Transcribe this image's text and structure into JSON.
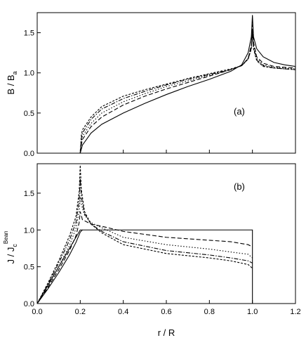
{
  "chart_data": [
    {
      "type": "line",
      "panel_label": "(a)",
      "ylabel_main": "B / B",
      "ylabel_sub": "a",
      "xlim": [
        0,
        1.2
      ],
      "ylim": [
        0,
        1.75
      ],
      "xticks": [
        "0.0",
        "0.2",
        "0.4",
        "0.6",
        "0.8",
        "1.0",
        "1.2"
      ],
      "yticks": [
        "0.0",
        "0.5",
        "1.0",
        "1.5"
      ],
      "yticks_values": [
        0,
        0.5,
        1.0,
        1.5
      ],
      "series": [
        {
          "style": "solid",
          "x": [
            0,
            0.2,
            0.21,
            0.25,
            0.3,
            0.4,
            0.5,
            0.6,
            0.7,
            0.8,
            0.9,
            0.95,
            0.98,
            0.995,
            1.0,
            1.005,
            1.02,
            1.05,
            1.1,
            1.15,
            1.2
          ],
          "y": [
            0,
            0,
            0.1,
            0.25,
            0.36,
            0.5,
            0.62,
            0.73,
            0.83,
            0.92,
            1.02,
            1.1,
            1.25,
            1.45,
            1.72,
            1.45,
            1.3,
            1.2,
            1.13,
            1.1,
            1.08
          ]
        },
        {
          "style": "dash",
          "x": [
            0,
            0.2,
            0.205,
            0.21,
            0.25,
            0.3,
            0.4,
            0.5,
            0.6,
            0.7,
            0.8,
            0.9,
            0.95,
            0.98,
            0.995,
            1.0,
            1.005,
            1.02,
            1.05,
            1.1,
            1.15,
            1.2
          ],
          "y": [
            0,
            0,
            0.1,
            0.17,
            0.33,
            0.45,
            0.6,
            0.71,
            0.8,
            0.88,
            0.96,
            1.04,
            1.09,
            1.18,
            1.35,
            1.6,
            1.38,
            1.2,
            1.12,
            1.08,
            1.07,
            1.06
          ]
        },
        {
          "style": "dot",
          "x": [
            0,
            0.2,
            0.205,
            0.21,
            0.25,
            0.3,
            0.4,
            0.5,
            0.6,
            0.7,
            0.8,
            0.9,
            0.95,
            0.98,
            0.995,
            1.0,
            1.005,
            1.02,
            1.05,
            1.1,
            1.15,
            1.2
          ],
          "y": [
            0,
            0,
            0.14,
            0.21,
            0.37,
            0.5,
            0.64,
            0.74,
            0.83,
            0.9,
            0.97,
            1.04,
            1.09,
            1.18,
            1.33,
            1.55,
            1.35,
            1.18,
            1.1,
            1.07,
            1.06,
            1.05
          ]
        },
        {
          "style": "dashdot",
          "x": [
            0,
            0.2,
            0.205,
            0.21,
            0.25,
            0.3,
            0.4,
            0.5,
            0.6,
            0.7,
            0.8,
            0.9,
            0.95,
            0.98,
            0.995,
            1.0,
            1.005,
            1.02,
            1.05,
            1.1,
            1.15,
            1.2
          ],
          "y": [
            0,
            0,
            0.18,
            0.25,
            0.42,
            0.55,
            0.68,
            0.77,
            0.85,
            0.92,
            0.98,
            1.04,
            1.09,
            1.17,
            1.31,
            1.52,
            1.32,
            1.16,
            1.09,
            1.06,
            1.05,
            1.04
          ]
        },
        {
          "style": "shortdash",
          "x": [
            0,
            0.2,
            0.205,
            0.21,
            0.25,
            0.3,
            0.4,
            0.5,
            0.6,
            0.7,
            0.8,
            0.9,
            0.95,
            0.98,
            0.995,
            1.0,
            1.005,
            1.02,
            1.05,
            1.1,
            1.15,
            1.2
          ],
          "y": [
            0,
            0,
            0.22,
            0.29,
            0.45,
            0.58,
            0.71,
            0.79,
            0.86,
            0.93,
            0.99,
            1.05,
            1.09,
            1.17,
            1.3,
            1.5,
            1.3,
            1.15,
            1.08,
            1.06,
            1.05,
            1.04
          ]
        }
      ]
    },
    {
      "type": "line",
      "panel_label": "(b)",
      "ylabel_main": "J / J",
      "ylabel_sub": "c",
      "ylabel_sup": "Bean",
      "xlabel": "r / R",
      "xlim": [
        0,
        1.2
      ],
      "ylim": [
        0,
        1.9
      ],
      "xticks": [
        "0.0",
        "0.2",
        "0.4",
        "0.6",
        "0.8",
        "1.0",
        "1.2"
      ],
      "xticks_values": [
        0,
        0.2,
        0.4,
        0.6,
        0.8,
        1.0,
        1.2
      ],
      "yticks": [
        "0.0",
        "0.5",
        "1.0",
        "1.5"
      ],
      "yticks_values": [
        0,
        0.5,
        1.0,
        1.5
      ],
      "series": [
        {
          "style": "solid-bean",
          "x": [
            0,
            0.2,
            0.2,
            1.0,
            1.0
          ],
          "y": [
            0,
            1.0,
            1.0,
            1.0,
            0
          ]
        },
        {
          "style": "solid",
          "x": [
            0,
            0.05,
            0.1,
            0.15,
            0.18,
            0.2,
            0.21
          ],
          "y": [
            0,
            0.2,
            0.42,
            0.66,
            0.83,
            0.97,
            1.0
          ]
        },
        {
          "style": "dash",
          "x": [
            0,
            0.05,
            0.1,
            0.15,
            0.18,
            0.195,
            0.2,
            0.21,
            0.25,
            0.3,
            0.4,
            0.6,
            0.8,
            0.9,
            0.98,
            1.0
          ],
          "y": [
            0,
            0.22,
            0.46,
            0.72,
            0.92,
            1.1,
            1.25,
            1.14,
            1.08,
            1.05,
            0.98,
            0.9,
            0.86,
            0.84,
            0.8,
            0.77
          ]
        },
        {
          "style": "dot",
          "x": [
            0,
            0.05,
            0.1,
            0.15,
            0.18,
            0.195,
            0.2,
            0.205,
            0.22,
            0.25,
            0.3,
            0.4,
            0.6,
            0.8,
            0.9,
            0.98,
            1.0
          ],
          "y": [
            0,
            0.24,
            0.5,
            0.79,
            1.02,
            1.25,
            1.45,
            1.35,
            1.2,
            1.1,
            1.03,
            0.9,
            0.8,
            0.74,
            0.7,
            0.67,
            0.62
          ]
        },
        {
          "style": "dashdot",
          "x": [
            0,
            0.05,
            0.1,
            0.15,
            0.18,
            0.195,
            0.2,
            0.205,
            0.22,
            0.25,
            0.3,
            0.4,
            0.6,
            0.8,
            0.9,
            0.98,
            1.0
          ],
          "y": [
            0,
            0.26,
            0.55,
            0.86,
            1.1,
            1.4,
            1.7,
            1.45,
            1.22,
            1.08,
            0.98,
            0.84,
            0.72,
            0.66,
            0.62,
            0.58,
            0.55
          ]
        },
        {
          "style": "shortdash",
          "x": [
            0,
            0.05,
            0.1,
            0.15,
            0.18,
            0.195,
            0.2,
            0.205,
            0.22,
            0.25,
            0.3,
            0.4,
            0.6,
            0.8,
            0.9,
            0.98,
            1.0
          ],
          "y": [
            0,
            0.28,
            0.58,
            0.92,
            1.18,
            1.52,
            1.88,
            1.55,
            1.25,
            1.08,
            0.96,
            0.8,
            0.68,
            0.62,
            0.58,
            0.53,
            0.48
          ]
        }
      ]
    }
  ]
}
